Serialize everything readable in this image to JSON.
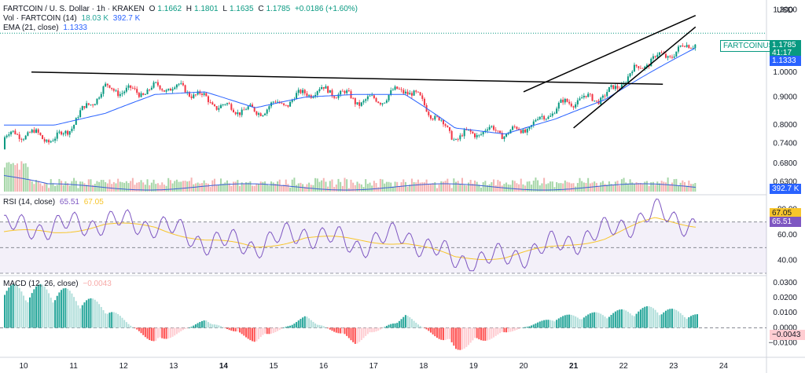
{
  "header": {
    "symbol": "FARTCOIN / U. S. Dollar · 1h · KRAKEN",
    "ohlc": {
      "o_label": "O",
      "o": "1.1662",
      "h_label": "H",
      "h": "1.1801",
      "l_label": "L",
      "l": "1.1635",
      "c_label": "C",
      "c": "1.1785",
      "change": "+0.0186 (+1.60%)"
    },
    "vol_label": "Vol · FARTCOIN (14)",
    "vol_a": "18.03 K",
    "vol_b": "392.7 K",
    "ema_label": "EMA (21, close)",
    "ema_val": "1.1333",
    "rsi_label": "RSI (14, close)",
    "rsi_val": "65.51",
    "rsi_ma_val": "67.05",
    "macd_label": "MACD (12, 26, close)",
    "macd_val": "−0.0043"
  },
  "price_axis": {
    "currency": "USD",
    "ticks": [
      "1.3000",
      "1.1000",
      "1.0000",
      "0.9000",
      "0.8000",
      "0.7400",
      "0.6800",
      "0.6300"
    ]
  },
  "badges": {
    "symbol_tag": "FARTCOINUSD",
    "last_price": "1.1785",
    "countdown": "41:17",
    "ema": "1.1333",
    "volume": "392.7 K",
    "rsi_ma": "67.05",
    "rsi": "65.51",
    "macd": "−0.0043"
  },
  "rsi_axis": [
    "80.00",
    "60.00",
    "40.00"
  ],
  "macd_axis": [
    "0.0300",
    "0.0200",
    "0.0100",
    "0.0000",
    "−0.0100"
  ],
  "time_axis": [
    "10",
    "11",
    "12",
    "13",
    "14",
    "15",
    "16",
    "17",
    "18",
    "19",
    "20",
    "21",
    "22",
    "23",
    "24"
  ],
  "colors": {
    "up": "#089981",
    "down": "#f23645",
    "ema": "#2962ff",
    "rsi": "#7e57c2",
    "rsi_ma": "#f7c52c",
    "volume_ma": "#3c5fd6",
    "hist_up": "#26a69a",
    "hist_up_light": "#b2dfdb",
    "hist_down": "#ff5252",
    "hist_down_light": "#ffcdd2",
    "trendline": "#000000"
  },
  "chart_data": {
    "type": "candlestick",
    "title": "FARTCOIN / U. S. Dollar · 1h · KRAKEN",
    "x": [
      "10",
      "11",
      "12",
      "13",
      "14",
      "15",
      "16",
      "17",
      "18",
      "19",
      "20",
      "21",
      "22",
      "23"
    ],
    "close": [
      0.76,
      0.92,
      0.94,
      0.9,
      0.83,
      0.93,
      0.89,
      0.92,
      0.77,
      0.77,
      0.85,
      0.92,
      1.05,
      1.18
    ],
    "ema21": [
      0.8,
      0.84,
      0.91,
      0.92,
      0.86,
      0.9,
      0.91,
      0.91,
      0.79,
      0.77,
      0.82,
      0.89,
      1.01,
      1.13
    ],
    "ylim": [
      0.6,
      1.32
    ],
    "log_scale": true,
    "ylabel": "USD",
    "last": 1.1785,
    "trendlines": [
      {
        "from": [
          "10",
          1.0
        ],
        "to": [
          "22",
          0.95
        ]
      },
      {
        "from": [
          "20",
          0.92
        ],
        "to": [
          "23",
          1.27
        ]
      },
      {
        "from": [
          "21",
          0.79
        ],
        "to": [
          "23",
          1.21
        ]
      }
    ],
    "volume_ma_last": 392.7,
    "rsi": {
      "values": [
        66,
        70,
        68,
        55,
        52,
        62,
        52,
        60,
        40,
        42,
        52,
        62,
        77,
        66
      ],
      "ma_values": [
        62,
        68,
        66,
        56,
        50,
        58,
        56,
        54,
        42,
        43,
        50,
        58,
        72,
        67
      ],
      "ylim": [
        30,
        90
      ],
      "bands": [
        70,
        50,
        30
      ],
      "last": 65.51,
      "ma_last": 67.05
    },
    "macd": {
      "hist": [
        0.029,
        0.016,
        -0.012,
        0.006,
        -0.01,
        0.008,
        -0.011,
        0.009,
        -0.016,
        -0.004,
        0.008,
        0.011,
        0.015,
        0.008
      ],
      "ylim": [
        -0.018,
        0.032
      ],
      "last": -0.0043
    }
  }
}
